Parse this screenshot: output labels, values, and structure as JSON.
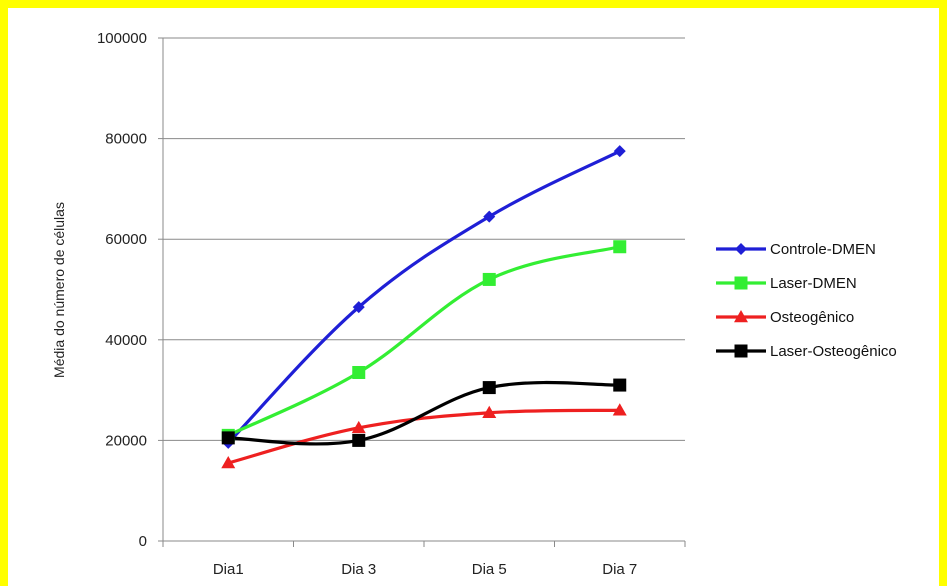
{
  "chart_data": {
    "type": "line",
    "title": "",
    "xlabel": "",
    "ylabel": "Média do número de células",
    "categories": [
      "Dia1",
      "Dia 3",
      "Dia 5",
      "Dia 7"
    ],
    "ylim": [
      0,
      100000
    ],
    "yticks": [
      0,
      20000,
      40000,
      60000,
      80000,
      100000
    ],
    "grid": "horizontal",
    "legend_position": "right",
    "series": [
      {
        "name": "Controle-DMEN",
        "color": "#1f1fd6",
        "marker": "diamond",
        "values": [
          19500,
          46500,
          64500,
          77500
        ]
      },
      {
        "name": "Laser-DMEN",
        "color": "#33ee33",
        "marker": "square",
        "values": [
          21000,
          33500,
          52000,
          58500
        ]
      },
      {
        "name": "Osteogênico",
        "color": "#ee2020",
        "marker": "triangle",
        "values": [
          15500,
          22500,
          25500,
          26000
        ]
      },
      {
        "name": "Laser-Osteogênico",
        "color": "#000000",
        "marker": "square",
        "values": [
          20500,
          20000,
          30500,
          31000
        ]
      }
    ]
  }
}
